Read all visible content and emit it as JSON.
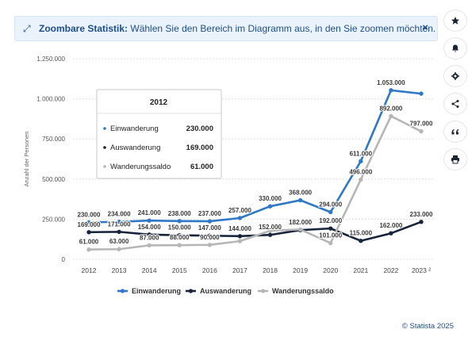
{
  "banner": {
    "title": "Zoombare Statistik:",
    "text": "Wählen Sie den Bereich im Diagramm aus, in den Sie zoomen möchten.",
    "close_label": "×"
  },
  "sidebar": {
    "icons": [
      "star-icon",
      "bell-icon",
      "gear-icon",
      "share-icon",
      "quote-icon",
      "print-icon"
    ]
  },
  "tooltip": {
    "year": "2012",
    "rows": [
      {
        "label": "Einwanderung",
        "value": "230.000",
        "color": "#2f78c7"
      },
      {
        "label": "Auswanderung",
        "value": "169.000",
        "color": "#17243b"
      },
      {
        "label": "Wanderungssaldo",
        "value": "61.000",
        "color": "#b6b6b6"
      }
    ]
  },
  "footer": "© Statista 2025",
  "chart_data": {
    "type": "line",
    "categories": [
      "2012",
      "2013",
      "2014",
      "2015",
      "2016",
      "2017",
      "2018",
      "2019",
      "2020",
      "2021",
      "2022",
      "2023"
    ],
    "category_labels": [
      "2012",
      "2013",
      "2014",
      "2015",
      "2016",
      "2017",
      "2018",
      "2019",
      "2020",
      "2021",
      "2022",
      "2023 ²"
    ],
    "ylabel": "Anzahl der Personen",
    "ylim": [
      0,
      1250000
    ],
    "yticks": [
      0,
      250000,
      500000,
      750000,
      1000000,
      1250000
    ],
    "ytick_labels": [
      "0",
      "250.000",
      "500.000",
      "750.000",
      "1.000.000",
      "1.250.000"
    ],
    "grid": true,
    "legend": "bottom",
    "series": [
      {
        "name": "Einwanderung",
        "color": "#2f78c7",
        "values": [
          230000,
          234000,
          241000,
          238000,
          237000,
          257000,
          330000,
          368000,
          294000,
          611000,
          1053000,
          1032000
        ],
        "labels": [
          "230.000",
          "234.000",
          "241.000",
          "238.000",
          "237.000",
          "257.000",
          "330.000",
          "368.000",
          "294.000",
          "611.000",
          "1.053.000",
          ""
        ]
      },
      {
        "name": "Auswanderung",
        "color": "#17243b",
        "values": [
          169000,
          171000,
          154000,
          150000,
          147000,
          144000,
          152000,
          182000,
          192000,
          115000,
          162000,
          233000
        ],
        "labels": [
          "169.000",
          "171.000",
          "154.000",
          "150.000",
          "147.000",
          "144.000",
          "152.000",
          "182.000",
          "192.000",
          "115.000",
          "162.000",
          "233.000"
        ]
      },
      {
        "name": "Wanderungssaldo",
        "color": "#b6b6b6",
        "values": [
          61000,
          63000,
          87000,
          88000,
          90000,
          113000,
          178000,
          186000,
          101000,
          496000,
          892000,
          797000
        ],
        "labels": [
          "61.000",
          "63.000",
          "87.000",
          "88.000",
          "90.000",
          "",
          "",
          "",
          "101.000",
          "496.000",
          "892.000",
          "797.000"
        ]
      }
    ]
  }
}
